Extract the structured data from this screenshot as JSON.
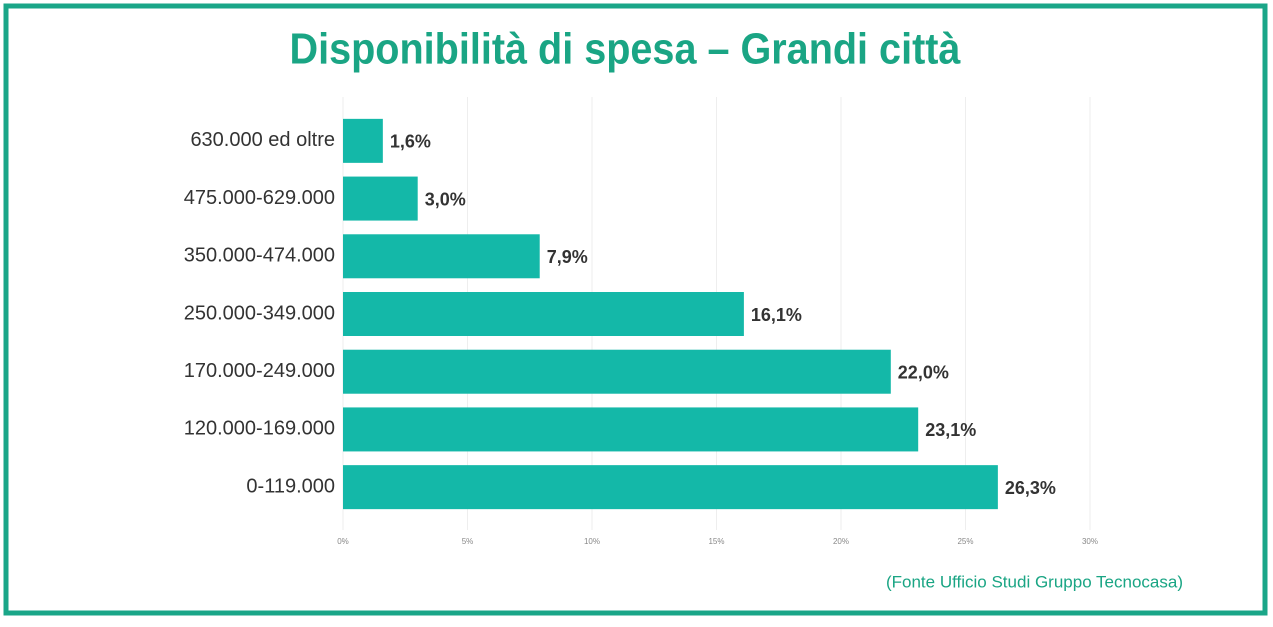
{
  "chart_data": {
    "type": "barh",
    "title": "Disponibilità di spesa – Grandi città",
    "categories": [
      "630.000 ed oltre",
      "475.000-629.000",
      "350.000-474.000",
      "250.000-349.000",
      "170.000-249.000",
      "120.000-169.000",
      "0-119.000"
    ],
    "values": [
      1.6,
      3.0,
      7.9,
      16.1,
      22.0,
      23.1,
      26.3
    ],
    "value_labels": [
      "1,6%",
      "3,0%",
      "7,9%",
      "16,1%",
      "22,0%",
      "23,1%",
      "26,3%"
    ],
    "color": "#14b8a8",
    "xlim": [
      0,
      30
    ],
    "xticks": [
      {
        "value": 0,
        "label": "0%"
      },
      {
        "value": 5,
        "label": "5%"
      },
      {
        "value": 10,
        "label": "10%"
      },
      {
        "value": 15,
        "label": "15%"
      },
      {
        "value": 20,
        "label": "20%"
      },
      {
        "value": 25,
        "label": "25%"
      },
      {
        "value": 30,
        "label": "30%"
      }
    ],
    "grid": true,
    "source": "(Fonte Ufficio Studi Gruppo Tecnocasa)"
  }
}
